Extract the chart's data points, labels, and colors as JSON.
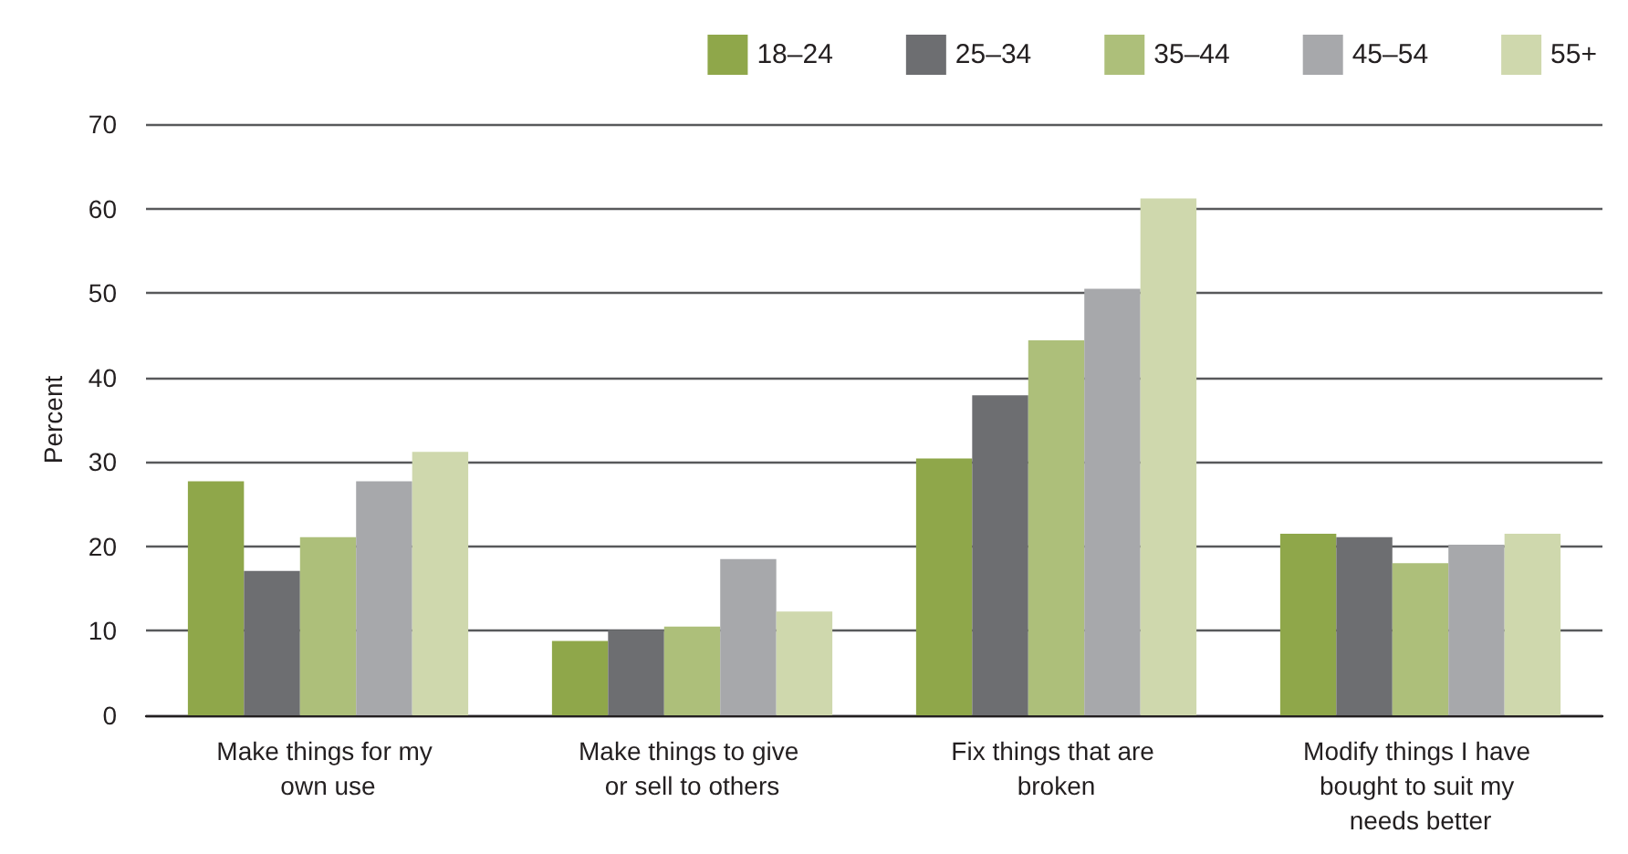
{
  "chart_data": {
    "type": "bar",
    "ylabel": "Percent",
    "categories": [
      "Make things for my own use",
      "Make things to give or sell to others",
      "Fix things that are broken",
      "Modify things I have bought to suit my needs better"
    ],
    "series": [
      {
        "name": "18–24",
        "color": "#8fa74a",
        "values": [
          27.7,
          8.8,
          30.4,
          21.5
        ]
      },
      {
        "name": "25–34",
        "color": "#6d6e71",
        "values": [
          17.1,
          10.1,
          37.9,
          21.1
        ]
      },
      {
        "name": "35–44",
        "color": "#adbf7a",
        "values": [
          21.1,
          10.5,
          44.4,
          18.0
        ]
      },
      {
        "name": "45–54",
        "color": "#a7a8ab",
        "values": [
          27.7,
          18.5,
          50.5,
          20.2
        ]
      },
      {
        "name": "55+",
        "color": "#cfd8ad",
        "values": [
          31.2,
          12.3,
          61.2,
          21.5
        ]
      }
    ],
    "ylim": [
      0,
      70
    ],
    "yticks": [
      0,
      10,
      20,
      30,
      40,
      50,
      60,
      70
    ],
    "grid": "y",
    "legend": "top right"
  }
}
